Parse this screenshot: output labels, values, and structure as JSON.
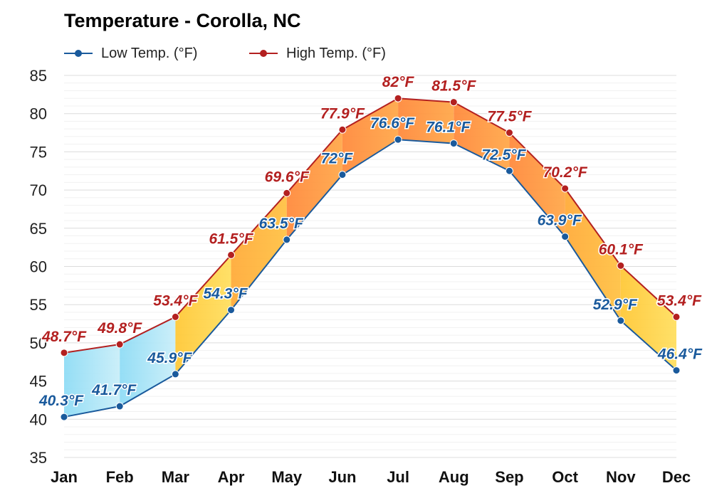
{
  "chart_data": {
    "type": "line",
    "title": "Temperature - Corolla, NC",
    "categories": [
      "Jan",
      "Feb",
      "Mar",
      "Apr",
      "May",
      "Jun",
      "Jul",
      "Aug",
      "Sep",
      "Oct",
      "Nov",
      "Dec"
    ],
    "series": [
      {
        "name": "Low Temp. (°F)",
        "color": "#1a5a9c",
        "values": [
          40.3,
          41.7,
          45.9,
          54.3,
          63.5,
          72,
          76.6,
          76.1,
          72.5,
          63.9,
          52.9,
          46.4
        ],
        "labels": [
          "40.3°F",
          "41.7°F",
          "45.9°F",
          "54.3°F",
          "63.5°F",
          "72°F",
          "76.6°F",
          "76.1°F",
          "72.5°F",
          "63.9°F",
          "52.9°F",
          "46.4°F"
        ]
      },
      {
        "name": "High Temp. (°F)",
        "color": "#b32020",
        "values": [
          48.7,
          49.8,
          53.4,
          61.5,
          69.6,
          77.9,
          82,
          81.5,
          77.5,
          70.2,
          60.1,
          53.4
        ],
        "labels": [
          "48.7°F",
          "49.8°F",
          "53.4°F",
          "61.5°F",
          "69.6°F",
          "77.9°F",
          "82°F",
          "81.5°F",
          "77.5°F",
          "70.2°F",
          "60.1°F",
          "53.4°F"
        ]
      }
    ],
    "ylim": [
      35,
      85
    ],
    "yticks": [
      "35",
      "40",
      "45",
      "50",
      "55",
      "60",
      "65",
      "70",
      "75",
      "80",
      "85"
    ],
    "grid": true,
    "legend": "top-left",
    "xlabel": "",
    "ylabel": ""
  }
}
